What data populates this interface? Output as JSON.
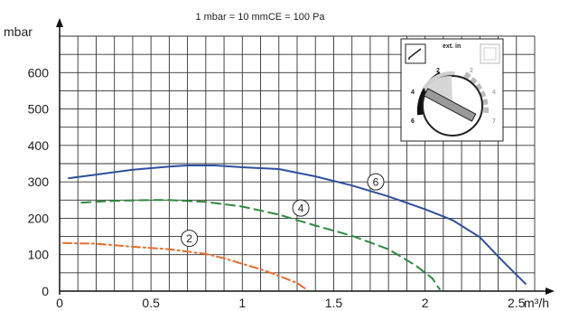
{
  "chart_data": {
    "type": "line",
    "title": "",
    "subtitle": "1 mbar = 10 mmCE = 100 Pa",
    "xlabel": "m³/h",
    "ylabel": "mbar",
    "xlim": [
      0,
      2.6
    ],
    "ylim": [
      0,
      700
    ],
    "x_ticks": [
      "0",
      "0.5",
      "1",
      "1.5",
      "2",
      "2.5"
    ],
    "y_ticks": [
      "0",
      "100",
      "200",
      "300",
      "400",
      "500",
      "600"
    ],
    "grid": true,
    "series": [
      {
        "name": "6",
        "color": "#2f4fa0",
        "style": "solid",
        "x": [
          0.05,
          0.2,
          0.4,
          0.6,
          0.7,
          0.85,
          1.0,
          1.2,
          1.4,
          1.6,
          1.8,
          2.0,
          2.15,
          2.3,
          2.42,
          2.5,
          2.55
        ],
        "y": [
          310,
          320,
          333,
          342,
          345,
          345,
          340,
          335,
          315,
          290,
          260,
          225,
          195,
          148,
          85,
          45,
          20
        ]
      },
      {
        "name": "4",
        "color": "#2e8b3e",
        "style": "dashed",
        "x": [
          0.12,
          0.3,
          0.5,
          0.6,
          0.8,
          1.0,
          1.2,
          1.4,
          1.6,
          1.8,
          1.95,
          2.04,
          2.08
        ],
        "y": [
          243,
          248,
          250,
          250,
          245,
          232,
          210,
          180,
          152,
          115,
          70,
          35,
          5
        ]
      },
      {
        "name": "2",
        "color": "#ee6a2a",
        "style": "dashdot",
        "x": [
          0.02,
          0.2,
          0.4,
          0.6,
          0.8,
          0.9,
          1.0,
          1.1,
          1.2,
          1.3,
          1.35
        ],
        "y": [
          132,
          130,
          122,
          115,
          102,
          90,
          75,
          60,
          42,
          22,
          5
        ]
      }
    ],
    "inset": {
      "label": "ext. in",
      "left_scale": [
        "2",
        "4",
        "6"
      ],
      "right_scale": [
        "2",
        "4",
        "7"
      ]
    }
  }
}
